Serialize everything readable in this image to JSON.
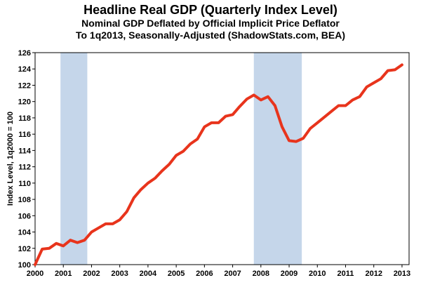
{
  "header": {
    "title": "Headline Real GDP (Quarterly Index Level)",
    "subtitle1": "Nominal GDP Deflated by Official Implicit Price Deflator",
    "subtitle2": "To 1q2013, Seasonally-Adjusted (ShadowStats.com, BEA)"
  },
  "chart_data": {
    "type": "line",
    "ylabel": "Index Level, 1q2000 = 100",
    "xlabel": "",
    "xlim": [
      2000,
      2013.25
    ],
    "ylim": [
      100,
      126
    ],
    "y_ticks": [
      100,
      102,
      104,
      106,
      108,
      110,
      112,
      114,
      116,
      118,
      120,
      122,
      124,
      126
    ],
    "x_ticks": [
      "2000",
      "2001",
      "2002",
      "2003",
      "2004",
      "2005",
      "2006",
      "2007",
      "2008",
      "2009",
      "2010",
      "2011",
      "2012",
      "2013"
    ],
    "grid": false,
    "recessions": [
      {
        "start": 2000.9,
        "end": 2001.85
      },
      {
        "start": 2007.75,
        "end": 2009.45
      }
    ],
    "series": [
      {
        "color": "#e8341c",
        "x": [
          2000.0,
          2000.25,
          2000.5,
          2000.75,
          2001.0,
          2001.25,
          2001.5,
          2001.75,
          2002.0,
          2002.25,
          2002.5,
          2002.75,
          2003.0,
          2003.25,
          2003.5,
          2003.75,
          2004.0,
          2004.25,
          2004.5,
          2004.75,
          2005.0,
          2005.25,
          2005.5,
          2005.75,
          2006.0,
          2006.25,
          2006.5,
          2006.75,
          2007.0,
          2007.25,
          2007.5,
          2007.75,
          2008.0,
          2008.25,
          2008.5,
          2008.75,
          2009.0,
          2009.25,
          2009.5,
          2009.75,
          2010.0,
          2010.25,
          2010.5,
          2010.75,
          2011.0,
          2011.25,
          2011.5,
          2011.75,
          2012.0,
          2012.25,
          2012.5,
          2012.75,
          2013.0
        ],
        "y": [
          100.0,
          101.9,
          102.0,
          102.6,
          102.3,
          103.0,
          102.7,
          103.0,
          104.0,
          104.5,
          105.0,
          105.0,
          105.5,
          106.5,
          108.2,
          109.2,
          110.0,
          110.6,
          111.5,
          112.3,
          113.4,
          113.9,
          114.8,
          115.4,
          116.9,
          117.4,
          117.4,
          118.2,
          118.4,
          119.4,
          120.3,
          120.8,
          120.2,
          120.6,
          119.5,
          116.9,
          115.2,
          115.1,
          115.5,
          116.7,
          117.4,
          118.1,
          118.8,
          119.5,
          119.5,
          120.2,
          120.6,
          121.8,
          122.3,
          122.8,
          123.8,
          123.9,
          124.5
        ]
      }
    ]
  }
}
